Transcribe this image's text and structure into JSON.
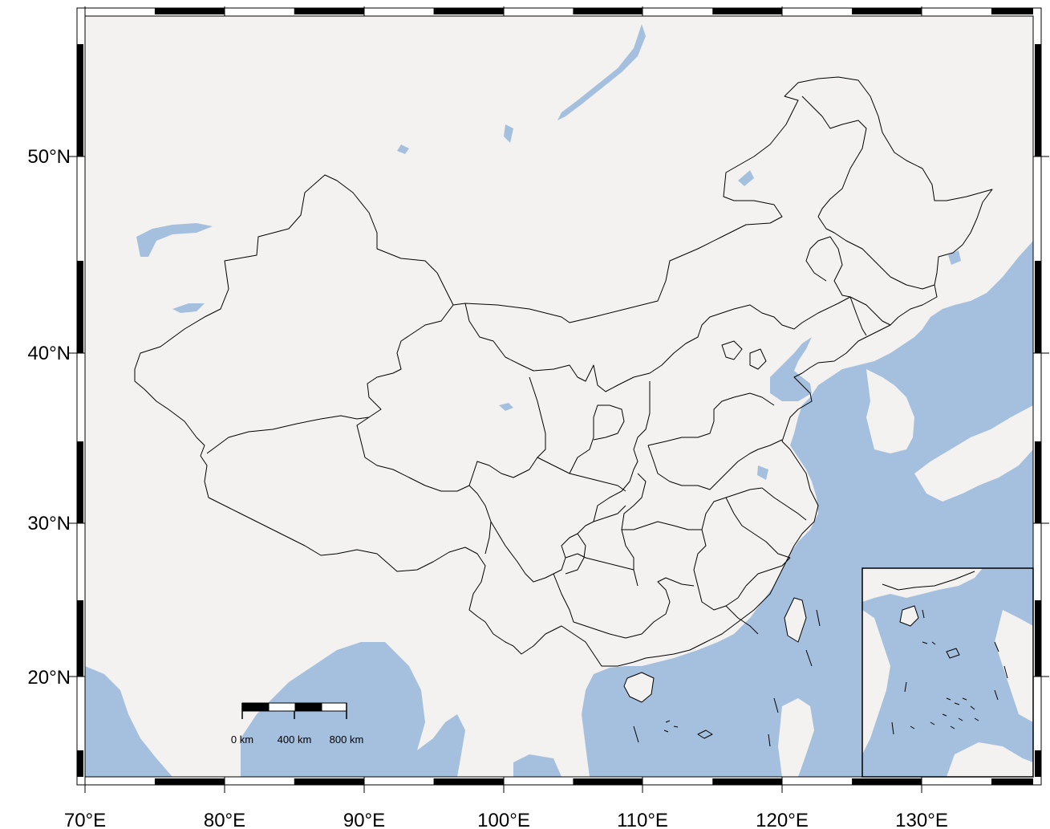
{
  "map": {
    "x_ticks": [
      "70°E",
      "80°E",
      "90°E",
      "100°E",
      "110°E",
      "120°E",
      "130°E"
    ],
    "y_ticks": [
      "50°N",
      "40°N",
      "30°N",
      "20°N"
    ],
    "scale_bar": {
      "labels": [
        "0 km",
        "400 km",
        "800 km"
      ]
    },
    "colors": {
      "land": "#f3f2f0",
      "water": "#a5c0de",
      "border": "#000000",
      "frame": "#000000"
    }
  }
}
